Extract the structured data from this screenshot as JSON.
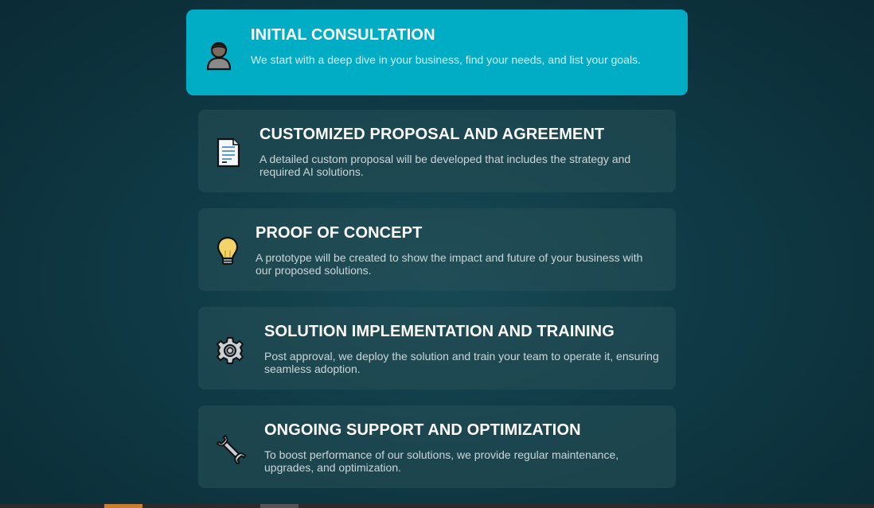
{
  "steps": [
    {
      "title": "INITIAL CONSULTATION",
      "description": "We start with a deep dive in your business, find your needs, and list your goals.",
      "icon": "person-icon",
      "active": true
    },
    {
      "title": "CUSTOMIZED PROPOSAL AND AGREEMENT",
      "description": "A detailed custom proposal will be developed that includes the strategy and required AI solutions.",
      "icon": "document-icon",
      "active": false
    },
    {
      "title": "PROOF OF CONCEPT",
      "description": "A prototype will be created to show the impact and future of your business with our proposed solutions.",
      "icon": "lightbulb-icon",
      "active": false
    },
    {
      "title": "SOLUTION IMPLEMENTATION AND TRAINING",
      "description": "Post approval, we deploy the solution and train your team to operate it, ensuring seamless adoption.",
      "icon": "gear-icon",
      "active": false
    },
    {
      "title": "ONGOING SUPPORT AND OPTIMIZATION",
      "description": "To boost performance of our solutions, we provide regular maintenance, upgrades, and optimization.",
      "icon": "wrench-icon",
      "active": false
    }
  ],
  "colors": {
    "active_card": "#00adc5",
    "inactive_card": "#2a525a",
    "background": "#0f3a45",
    "accent_bar": "#c77c32"
  }
}
